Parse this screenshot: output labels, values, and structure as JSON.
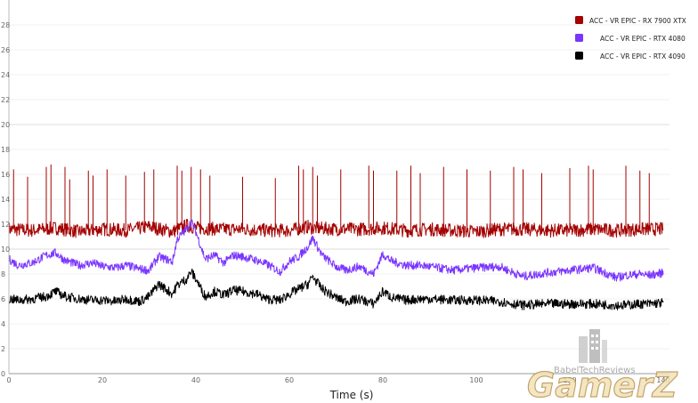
{
  "chart_data": {
    "type": "line",
    "title": "",
    "xlabel": "Time (s)",
    "ylabel": "",
    "xlim": [
      0,
      140
    ],
    "ylim": [
      0,
      30
    ],
    "x_ticks": [
      0,
      20,
      40,
      60,
      80,
      100,
      120,
      140
    ],
    "y_ticks": [
      0,
      2,
      4,
      6,
      8,
      10,
      12,
      14,
      16,
      18,
      20,
      22,
      24,
      26,
      28
    ],
    "grid": true,
    "legend_position": "top-right",
    "series": [
      {
        "name": "ACC - VR EPIC - RX 7900 XTX",
        "color": "#a40000",
        "x": [
          0,
          5,
          10,
          15,
          20,
          25,
          30,
          35,
          38,
          40,
          45,
          50,
          55,
          60,
          64,
          65,
          70,
          75,
          80,
          85,
          90,
          95,
          100,
          105,
          110,
          115,
          120,
          125,
          130,
          135,
          140
        ],
        "values": [
          11.6,
          11.5,
          11.7,
          11.4,
          11.6,
          11.5,
          11.8,
          11.4,
          11.9,
          11.7,
          11.6,
          11.6,
          11.5,
          11.5,
          11.8,
          11.7,
          11.6,
          11.6,
          11.7,
          11.5,
          11.6,
          11.5,
          11.4,
          11.6,
          11.6,
          11.5,
          11.5,
          11.6,
          11.5,
          11.6,
          11.6
        ],
        "spikes": [
          {
            "x": 1,
            "y": 16.4
          },
          {
            "x": 4,
            "y": 15.8
          },
          {
            "x": 8,
            "y": 16.6
          },
          {
            "x": 9,
            "y": 16.8
          },
          {
            "x": 12,
            "y": 16.6
          },
          {
            "x": 13,
            "y": 15.6
          },
          {
            "x": 17,
            "y": 16.3
          },
          {
            "x": 18,
            "y": 15.9
          },
          {
            "x": 21,
            "y": 16.4
          },
          {
            "x": 25,
            "y": 15.9
          },
          {
            "x": 29,
            "y": 16.2
          },
          {
            "x": 31,
            "y": 16.4
          },
          {
            "x": 36,
            "y": 16.7
          },
          {
            "x": 37,
            "y": 16.3
          },
          {
            "x": 39,
            "y": 16.6
          },
          {
            "x": 41,
            "y": 16.4
          },
          {
            "x": 43,
            "y": 15.9
          },
          {
            "x": 50,
            "y": 15.8
          },
          {
            "x": 57,
            "y": 15.7
          },
          {
            "x": 62,
            "y": 16.7
          },
          {
            "x": 63,
            "y": 16.4
          },
          {
            "x": 65,
            "y": 16.6
          },
          {
            "x": 66,
            "y": 15.9
          },
          {
            "x": 71,
            "y": 16.4
          },
          {
            "x": 77,
            "y": 16.7
          },
          {
            "x": 78,
            "y": 16.3
          },
          {
            "x": 83,
            "y": 16.3
          },
          {
            "x": 86,
            "y": 16.7
          },
          {
            "x": 88,
            "y": 16.1
          },
          {
            "x": 93,
            "y": 16.6
          },
          {
            "x": 98,
            "y": 16.4
          },
          {
            "x": 103,
            "y": 16.3
          },
          {
            "x": 108,
            "y": 16.6
          },
          {
            "x": 110,
            "y": 16.4
          },
          {
            "x": 114,
            "y": 16.1
          },
          {
            "x": 120,
            "y": 16.5
          },
          {
            "x": 124,
            "y": 16.7
          },
          {
            "x": 125,
            "y": 16.4
          },
          {
            "x": 132,
            "y": 16.7
          },
          {
            "x": 135,
            "y": 16.3
          },
          {
            "x": 137,
            "y": 16.1
          }
        ]
      },
      {
        "name": "ACC - VR EPIC - RTX 4080",
        "color": "#7a35ff",
        "x": [
          0,
          2,
          5,
          8,
          10,
          12,
          15,
          18,
          20,
          23,
          25,
          28,
          30,
          32,
          35,
          36,
          38,
          39,
          40,
          42,
          44,
          46,
          48,
          50,
          53,
          55,
          58,
          60,
          62,
          64,
          65,
          67,
          70,
          72,
          75,
          78,
          80,
          82,
          85,
          88,
          90,
          95,
          100,
          105,
          108,
          110,
          115,
          120,
          125,
          130,
          132,
          135,
          137,
          140
        ],
        "values": [
          9.2,
          8.7,
          8.9,
          9.5,
          9.7,
          9.1,
          8.7,
          8.9,
          8.6,
          8.5,
          8.7,
          8.4,
          8.3,
          9.4,
          9.0,
          10.8,
          11.6,
          12.2,
          11.4,
          9.2,
          9.5,
          8.9,
          9.5,
          9.4,
          9.1,
          8.8,
          8.2,
          9.0,
          9.4,
          10.2,
          10.9,
          9.5,
          8.6,
          8.3,
          8.6,
          8.0,
          9.6,
          9.0,
          8.7,
          8.7,
          8.6,
          8.3,
          8.5,
          8.6,
          8.1,
          7.8,
          8.1,
          8.3,
          8.5,
          7.7,
          7.9,
          8.0,
          7.9,
          8.1
        ]
      },
      {
        "name": "ACC - VR EPIC - RTX 4090",
        "color": "#000000",
        "x": [
          0,
          2,
          5,
          8,
          10,
          12,
          15,
          18,
          20,
          23,
          25,
          28,
          30,
          32,
          35,
          36,
          38,
          39,
          40,
          42,
          44,
          46,
          48,
          50,
          53,
          55,
          58,
          60,
          62,
          64,
          65,
          67,
          70,
          72,
          75,
          78,
          80,
          82,
          85,
          88,
          90,
          95,
          100,
          105,
          108,
          110,
          115,
          120,
          125,
          130,
          132,
          135,
          137,
          140
        ],
        "values": [
          6.0,
          5.9,
          6.0,
          6.2,
          6.6,
          6.2,
          6.0,
          5.9,
          5.9,
          5.8,
          6.0,
          5.8,
          6.2,
          7.2,
          6.4,
          7.1,
          7.6,
          8.2,
          7.6,
          6.2,
          6.6,
          6.3,
          6.7,
          6.6,
          6.4,
          6.0,
          5.9,
          6.4,
          6.8,
          7.2,
          7.8,
          6.8,
          6.1,
          5.8,
          6.0,
          5.6,
          6.6,
          6.1,
          5.9,
          6.0,
          6.0,
          5.9,
          5.9,
          5.8,
          5.6,
          5.5,
          5.6,
          5.6,
          5.6,
          5.5,
          5.5,
          5.6,
          5.6,
          5.7
        ]
      }
    ]
  },
  "watermark": {
    "site_text": "BabelTechReviews",
    "logo_text": "GamerZ"
  }
}
